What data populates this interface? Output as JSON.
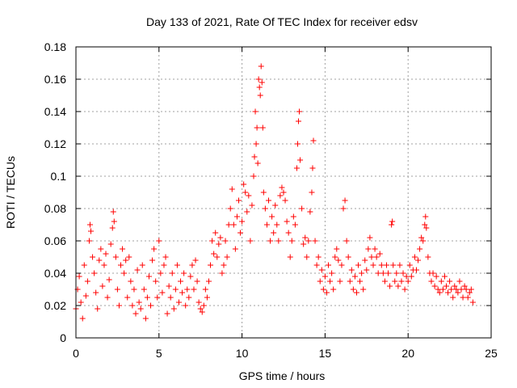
{
  "chart_data": {
    "type": "scatter",
    "title": "Day 133 of 2021, Rate Of TEC Index for receiver edsv",
    "xlabel": "GPS time / hours",
    "ylabel": "ROTI / TECUs",
    "xlim": [
      0,
      25
    ],
    "ylim": [
      0,
      0.18
    ],
    "x_ticks": [
      0,
      5,
      10,
      15,
      20,
      25
    ],
    "y_ticks": [
      0,
      0.02,
      0.04,
      0.06,
      0.08,
      0.1,
      0.12,
      0.14,
      0.16,
      0.18
    ],
    "x_tick_labels": [
      "0",
      "5",
      "10",
      "15",
      "20",
      "25"
    ],
    "y_tick_labels": [
      "0",
      "0.02",
      "0.04",
      "0.06",
      "0.08",
      "0.1",
      "0.12",
      "0.14",
      "0.16",
      "0.18"
    ],
    "grid": true,
    "marker": "+",
    "series_color": "#ff0000",
    "series": [
      {
        "points": [
          [
            0.0,
            0.018
          ],
          [
            0.1,
            0.03
          ],
          [
            0.2,
            0.038
          ],
          [
            0.3,
            0.022
          ],
          [
            0.4,
            0.012
          ],
          [
            0.5,
            0.045
          ],
          [
            0.6,
            0.026
          ],
          [
            0.7,
            0.035
          ],
          [
            0.8,
            0.06
          ],
          [
            0.85,
            0.07
          ],
          [
            0.9,
            0.066
          ],
          [
            1.0,
            0.05
          ],
          [
            1.1,
            0.04
          ],
          [
            1.2,
            0.028
          ],
          [
            1.3,
            0.018
          ],
          [
            1.4,
            0.048
          ],
          [
            1.5,
            0.055
          ],
          [
            1.6,
            0.032
          ],
          [
            1.7,
            0.045
          ],
          [
            1.8,
            0.052
          ],
          [
            1.9,
            0.025
          ],
          [
            2.0,
            0.036
          ],
          [
            2.1,
            0.058
          ],
          [
            2.2,
            0.068
          ],
          [
            2.25,
            0.078
          ],
          [
            2.3,
            0.072
          ],
          [
            2.4,
            0.05
          ],
          [
            2.5,
            0.03
          ],
          [
            2.6,
            0.02
          ],
          [
            2.7,
            0.045
          ],
          [
            2.8,
            0.055
          ],
          [
            2.9,
            0.04
          ],
          [
            3.0,
            0.048
          ],
          [
            3.1,
            0.025
          ],
          [
            3.2,
            0.05
          ],
          [
            3.3,
            0.035
          ],
          [
            3.4,
            0.02
          ],
          [
            3.5,
            0.03
          ],
          [
            3.6,
            0.015
          ],
          [
            3.7,
            0.042
          ],
          [
            3.8,
            0.022
          ],
          [
            3.9,
            0.018
          ],
          [
            4.0,
            0.045
          ],
          [
            4.1,
            0.03
          ],
          [
            4.2,
            0.012
          ],
          [
            4.3,
            0.025
          ],
          [
            4.4,
            0.038
          ],
          [
            4.5,
            0.02
          ],
          [
            4.6,
            0.048
          ],
          [
            4.7,
            0.055
          ],
          [
            4.8,
            0.035
          ],
          [
            4.9,
            0.025
          ],
          [
            5.0,
            0.06
          ],
          [
            5.1,
            0.04
          ],
          [
            5.2,
            0.028
          ],
          [
            5.3,
            0.045
          ],
          [
            5.4,
            0.05
          ],
          [
            5.5,
            0.015
          ],
          [
            5.6,
            0.032
          ],
          [
            5.7,
            0.025
          ],
          [
            5.8,
            0.04
          ],
          [
            5.9,
            0.018
          ],
          [
            6.0,
            0.03
          ],
          [
            6.1,
            0.045
          ],
          [
            6.2,
            0.022
          ],
          [
            6.3,
            0.035
          ],
          [
            6.4,
            0.028
          ],
          [
            6.5,
            0.04
          ],
          [
            6.6,
            0.02
          ],
          [
            6.7,
            0.03
          ],
          [
            6.8,
            0.025
          ],
          [
            6.9,
            0.038
          ],
          [
            7.0,
            0.045
          ],
          [
            7.1,
            0.03
          ],
          [
            7.2,
            0.048
          ],
          [
            7.3,
            0.035
          ],
          [
            7.4,
            0.022
          ],
          [
            7.5,
            0.018
          ],
          [
            7.6,
            0.016
          ],
          [
            7.7,
            0.02
          ],
          [
            7.8,
            0.03
          ],
          [
            7.9,
            0.025
          ],
          [
            8.0,
            0.035
          ],
          [
            8.1,
            0.045
          ],
          [
            8.2,
            0.06
          ],
          [
            8.3,
            0.052
          ],
          [
            8.4,
            0.065
          ],
          [
            8.5,
            0.05
          ],
          [
            8.6,
            0.058
          ],
          [
            8.7,
            0.062
          ],
          [
            8.8,
            0.04
          ],
          [
            8.9,
            0.045
          ],
          [
            9.0,
            0.06
          ],
          [
            9.1,
            0.05
          ],
          [
            9.2,
            0.07
          ],
          [
            9.3,
            0.08
          ],
          [
            9.4,
            0.092
          ],
          [
            9.5,
            0.07
          ],
          [
            9.6,
            0.055
          ],
          [
            9.7,
            0.075
          ],
          [
            9.8,
            0.085
          ],
          [
            9.9,
            0.065
          ],
          [
            10.0,
            0.072
          ],
          [
            10.1,
            0.095
          ],
          [
            10.2,
            0.09
          ],
          [
            10.3,
            0.078
          ],
          [
            10.4,
            0.088
          ],
          [
            10.5,
            0.06
          ],
          [
            10.6,
            0.082
          ],
          [
            10.7,
            0.1
          ],
          [
            10.75,
            0.112
          ],
          [
            10.8,
            0.14
          ],
          [
            10.85,
            0.12
          ],
          [
            10.9,
            0.13
          ],
          [
            10.95,
            0.108
          ],
          [
            11.0,
            0.16
          ],
          [
            11.05,
            0.155
          ],
          [
            11.1,
            0.15
          ],
          [
            11.15,
            0.168
          ],
          [
            11.2,
            0.158
          ],
          [
            11.25,
            0.13
          ],
          [
            11.3,
            0.09
          ],
          [
            11.4,
            0.08
          ],
          [
            11.5,
            0.07
          ],
          [
            11.6,
            0.085
          ],
          [
            11.7,
            0.06
          ],
          [
            11.8,
            0.075
          ],
          [
            11.9,
            0.065
          ],
          [
            12.0,
            0.082
          ],
          [
            12.1,
            0.07
          ],
          [
            12.2,
            0.06
          ],
          [
            12.3,
            0.088
          ],
          [
            12.4,
            0.093
          ],
          [
            12.5,
            0.09
          ],
          [
            12.6,
            0.085
          ],
          [
            12.7,
            0.072
          ],
          [
            12.8,
            0.065
          ],
          [
            12.9,
            0.05
          ],
          [
            13.0,
            0.06
          ],
          [
            13.1,
            0.075
          ],
          [
            13.2,
            0.07
          ],
          [
            13.3,
            0.105
          ],
          [
            13.35,
            0.12
          ],
          [
            13.4,
            0.134
          ],
          [
            13.45,
            0.14
          ],
          [
            13.5,
            0.11
          ],
          [
            13.6,
            0.08
          ],
          [
            13.7,
            0.058
          ],
          [
            13.8,
            0.062
          ],
          [
            13.9,
            0.05
          ],
          [
            14.0,
            0.06
          ],
          [
            14.1,
            0.078
          ],
          [
            14.2,
            0.09
          ],
          [
            14.25,
            0.105
          ],
          [
            14.3,
            0.122
          ],
          [
            14.4,
            0.06
          ],
          [
            14.5,
            0.045
          ],
          [
            14.6,
            0.05
          ],
          [
            14.7,
            0.035
          ],
          [
            14.8,
            0.042
          ],
          [
            14.9,
            0.03
          ],
          [
            15.0,
            0.038
          ],
          [
            15.1,
            0.028
          ],
          [
            15.2,
            0.045
          ],
          [
            15.3,
            0.035
          ],
          [
            15.4,
            0.04
          ],
          [
            15.5,
            0.03
          ],
          [
            15.6,
            0.05
          ],
          [
            15.7,
            0.055
          ],
          [
            15.8,
            0.048
          ],
          [
            15.9,
            0.035
          ],
          [
            16.0,
            0.045
          ],
          [
            16.1,
            0.08
          ],
          [
            16.2,
            0.085
          ],
          [
            16.3,
            0.06
          ],
          [
            16.4,
            0.05
          ],
          [
            16.5,
            0.035
          ],
          [
            16.6,
            0.042
          ],
          [
            16.7,
            0.03
          ],
          [
            16.8,
            0.038
          ],
          [
            16.9,
            0.028
          ],
          [
            17.0,
            0.045
          ],
          [
            17.1,
            0.035
          ],
          [
            17.2,
            0.04
          ],
          [
            17.3,
            0.03
          ],
          [
            17.4,
            0.048
          ],
          [
            17.5,
            0.042
          ],
          [
            17.6,
            0.055
          ],
          [
            17.7,
            0.062
          ],
          [
            17.8,
            0.05
          ],
          [
            17.9,
            0.045
          ],
          [
            18.0,
            0.055
          ],
          [
            18.1,
            0.05
          ],
          [
            18.2,
            0.04
          ],
          [
            18.3,
            0.052
          ],
          [
            18.4,
            0.045
          ],
          [
            18.5,
            0.04
          ],
          [
            18.6,
            0.035
          ],
          [
            18.7,
            0.045
          ],
          [
            18.8,
            0.04
          ],
          [
            18.9,
            0.032
          ],
          [
            19.0,
            0.07
          ],
          [
            19.05,
            0.072
          ],
          [
            19.1,
            0.045
          ],
          [
            19.2,
            0.035
          ],
          [
            19.3,
            0.04
          ],
          [
            19.4,
            0.032
          ],
          [
            19.5,
            0.045
          ],
          [
            19.6,
            0.035
          ],
          [
            19.7,
            0.04
          ],
          [
            19.8,
            0.03
          ],
          [
            19.9,
            0.038
          ],
          [
            20.0,
            0.035
          ],
          [
            20.1,
            0.045
          ],
          [
            20.2,
            0.038
          ],
          [
            20.3,
            0.042
          ],
          [
            20.4,
            0.05
          ],
          [
            20.5,
            0.042
          ],
          [
            20.6,
            0.048
          ],
          [
            20.7,
            0.055
          ],
          [
            20.8,
            0.062
          ],
          [
            20.9,
            0.06
          ],
          [
            21.0,
            0.07
          ],
          [
            21.05,
            0.075
          ],
          [
            21.1,
            0.068
          ],
          [
            21.2,
            0.05
          ],
          [
            21.3,
            0.04
          ],
          [
            21.4,
            0.035
          ],
          [
            21.5,
            0.04
          ],
          [
            21.6,
            0.032
          ],
          [
            21.7,
            0.038
          ],
          [
            21.8,
            0.03
          ],
          [
            21.9,
            0.028
          ],
          [
            22.0,
            0.035
          ],
          [
            22.1,
            0.03
          ],
          [
            22.2,
            0.038
          ],
          [
            22.3,
            0.032
          ],
          [
            22.4,
            0.028
          ],
          [
            22.5,
            0.035
          ],
          [
            22.6,
            0.03
          ],
          [
            22.7,
            0.025
          ],
          [
            22.8,
            0.032
          ],
          [
            22.9,
            0.03
          ],
          [
            23.0,
            0.028
          ],
          [
            23.1,
            0.035
          ],
          [
            23.2,
            0.03
          ],
          [
            23.3,
            0.025
          ],
          [
            23.4,
            0.032
          ],
          [
            23.5,
            0.03
          ],
          [
            23.6,
            0.025
          ],
          [
            23.7,
            0.028
          ],
          [
            23.8,
            0.03
          ],
          [
            23.9,
            0.022
          ]
        ]
      }
    ]
  }
}
